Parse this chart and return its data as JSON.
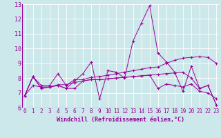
{
  "title": "",
  "xlabel": "Windchill (Refroidissement éolien,°C)",
  "bg_color": "#cce8ea",
  "line_color": "#990099",
  "grid_color": "#ffffff",
  "xmin": 0,
  "xmax": 23,
  "ymin": 6,
  "ymax": 13,
  "series": [
    [
      6.8,
      8.1,
      7.3,
      7.4,
      7.5,
      7.3,
      7.8,
      8.3,
      9.1,
      6.6,
      8.5,
      8.4,
      8.0,
      10.5,
      11.7,
      12.9,
      9.7,
      9.1,
      8.4,
      7.1,
      8.8,
      7.3,
      7.5,
      6.2
    ],
    [
      6.8,
      8.1,
      7.5,
      7.5,
      8.3,
      7.5,
      7.9,
      7.9,
      8.05,
      8.1,
      8.2,
      8.3,
      8.4,
      8.5,
      8.6,
      8.7,
      8.75,
      9.0,
      9.2,
      9.35,
      9.4,
      9.45,
      9.4,
      9.0
    ],
    [
      6.8,
      7.5,
      7.4,
      7.4,
      7.55,
      7.55,
      7.7,
      7.8,
      7.9,
      7.9,
      7.95,
      8.0,
      8.05,
      8.1,
      8.15,
      8.2,
      7.3,
      7.6,
      7.5,
      7.4,
      7.6,
      7.1,
      7.0,
      6.6
    ],
    [
      6.8,
      8.1,
      7.3,
      7.4,
      7.5,
      7.3,
      7.3,
      7.8,
      7.9,
      7.9,
      7.95,
      8.0,
      8.05,
      8.1,
      8.15,
      8.2,
      8.25,
      8.3,
      8.35,
      8.4,
      8.0,
      7.3,
      7.5,
      6.2
    ]
  ],
  "tick_fontsize": 5.5,
  "xlabel_fontsize": 6,
  "marker_size": 3,
  "linewidth": 0.7
}
